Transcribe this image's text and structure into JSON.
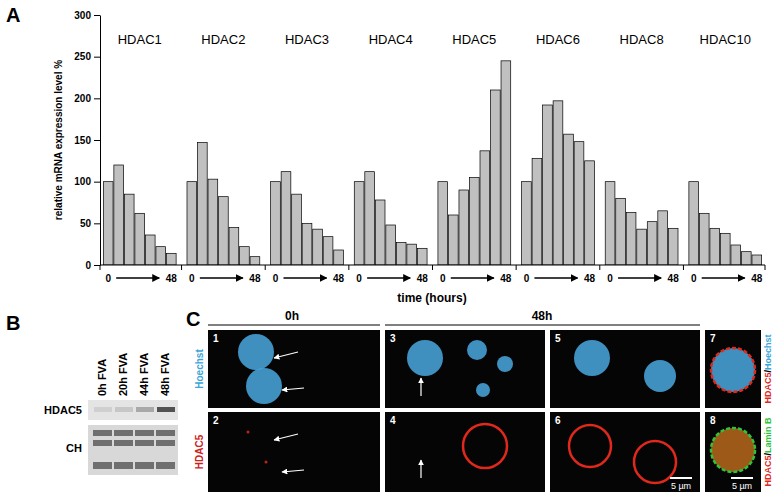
{
  "chart_data": {
    "type": "bar",
    "panel": "A",
    "ylabel": "relative mRNA expression level %",
    "xlabel": "time (hours)",
    "x_labels": [
      "0",
      "48"
    ],
    "ylim": [
      0,
      300
    ],
    "yticks": [
      0,
      50,
      100,
      150,
      200,
      250,
      300
    ],
    "color": "#c0c0c0",
    "series": [
      {
        "name": "HDAC1",
        "values": [
          100,
          120,
          85,
          62,
          36,
          22,
          14
        ]
      },
      {
        "name": "HDAC2",
        "values": [
          100,
          147,
          103,
          82,
          45,
          22,
          10
        ]
      },
      {
        "name": "HDAC3",
        "values": [
          100,
          112,
          85,
          50,
          43,
          34,
          18
        ]
      },
      {
        "name": "HDAC4",
        "values": [
          100,
          112,
          78,
          48,
          27,
          25,
          20
        ]
      },
      {
        "name": "HDAC5",
        "values": [
          100,
          60,
          90,
          105,
          137,
          210,
          245
        ]
      },
      {
        "name": "HDAC6",
        "values": [
          100,
          128,
          192,
          197,
          157,
          148,
          125
        ]
      },
      {
        "name": "HDAC8",
        "values": [
          100,
          80,
          63,
          43,
          52,
          65,
          44
        ]
      },
      {
        "name": "HDAC10",
        "values": [
          100,
          62,
          44,
          38,
          24,
          16,
          12
        ]
      }
    ]
  },
  "blot": {
    "panel": "B",
    "lanes": [
      "0h FVA",
      "20h FVA",
      "44h FVA",
      "48h FVA"
    ],
    "rows": [
      "HDAC5",
      "CH"
    ]
  },
  "microscopy": {
    "panel": "C",
    "times": [
      "0h",
      "48h"
    ],
    "channels": [
      "Hoechst",
      "HDAC5"
    ],
    "tiles": [
      "1",
      "2",
      "3",
      "4",
      "5",
      "6",
      "7",
      "8"
    ],
    "scale_bar": "5 µm",
    "merges": [
      [
        "HDAC5",
        "/",
        "Hoechst"
      ],
      [
        "HDAC5",
        "/",
        "Lamin B"
      ]
    ]
  }
}
